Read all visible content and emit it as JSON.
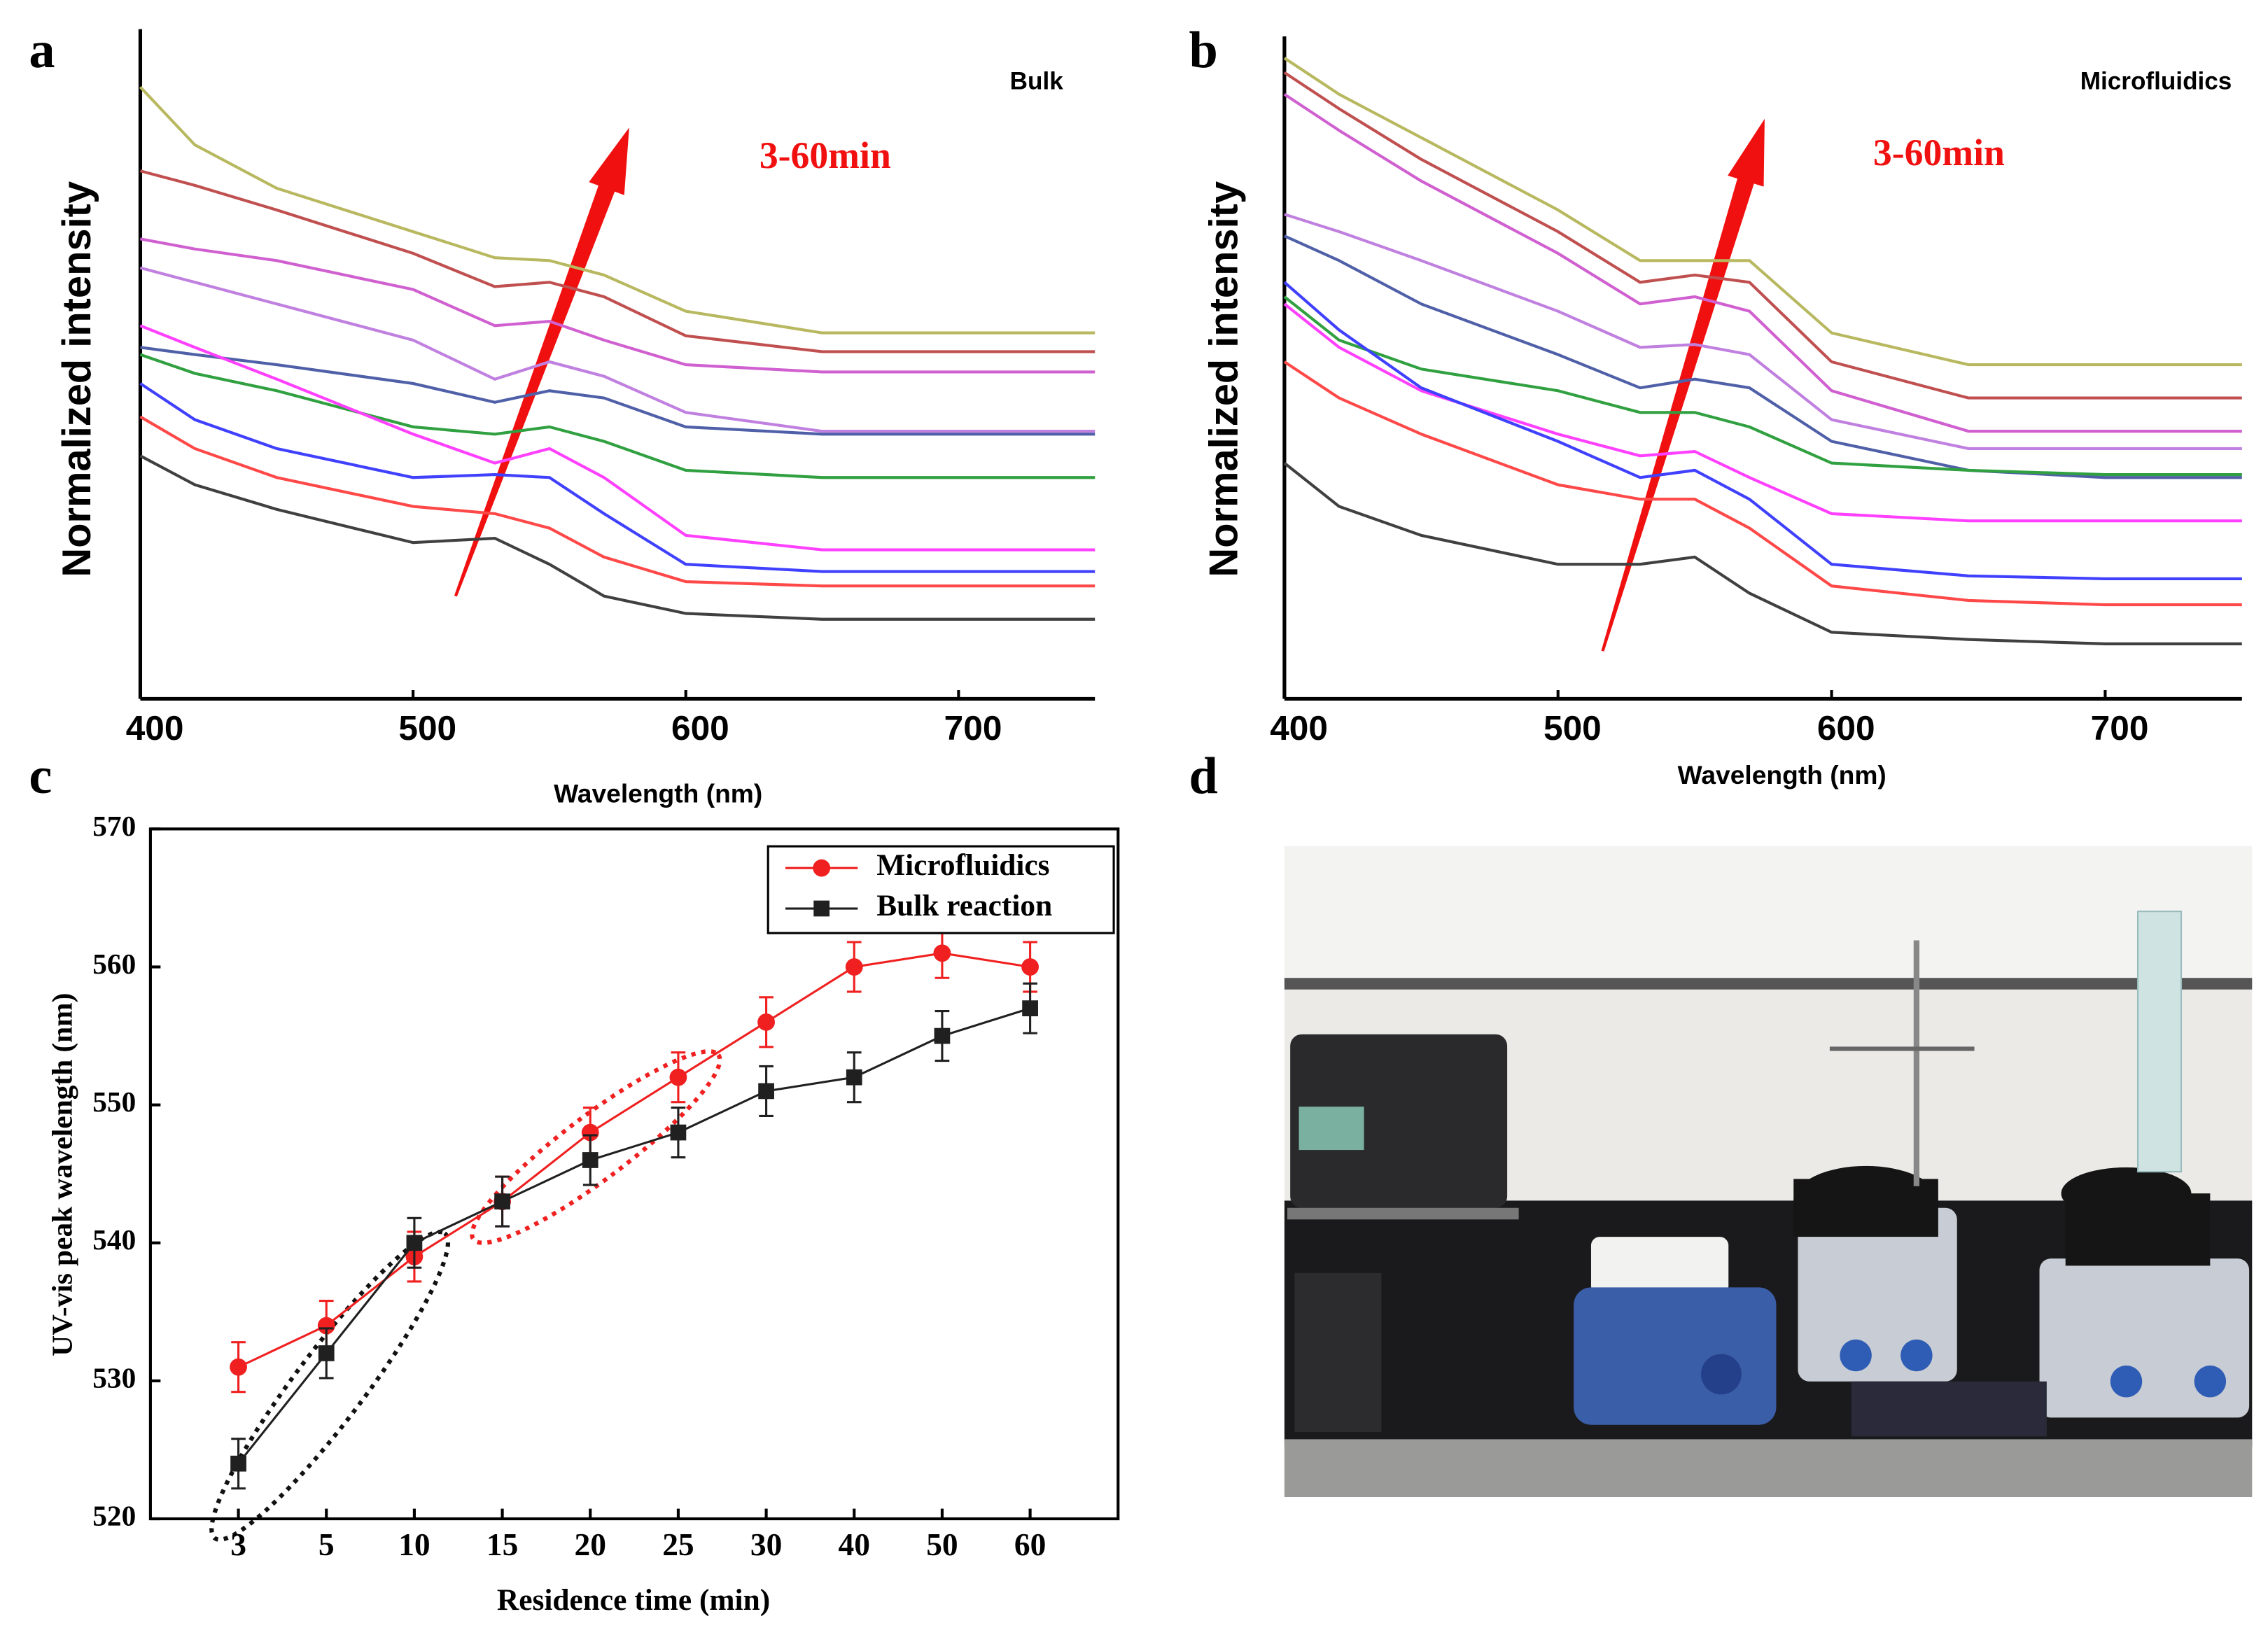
{
  "chart_data": [
    {
      "type": "line",
      "label": "a",
      "annotation": "Bulk",
      "arrow_label": "3-60min",
      "x_label": "Wavelength (nm)",
      "y_label": "Normalized intensity",
      "x": [
        400,
        420,
        450,
        500,
        530,
        550,
        570,
        600,
        650,
        700,
        750
      ],
      "xlim": [
        400,
        750
      ],
      "xticks": [
        400,
        500,
        600,
        700
      ],
      "ylim": [
        0,
        463
      ],
      "series": [
        {
          "color": "#b8b860",
          "values": [
            423,
            383,
            353,
            323,
            305,
            303,
            293,
            268,
            253,
            253,
            253
          ]
        },
        {
          "color": "#c05050",
          "values": [
            365,
            355,
            338,
            308,
            285,
            288,
            278,
            251,
            240,
            240,
            240
          ]
        },
        {
          "color": "#d060d0",
          "values": [
            318,
            311,
            303,
            283,
            258,
            261,
            248,
            231,
            226,
            226,
            226
          ]
        },
        {
          "color": "#c080e0",
          "values": [
            298,
            288,
            273,
            248,
            221,
            233,
            223,
            198,
            185,
            185,
            185
          ]
        },
        {
          "color": "#5060a8",
          "values": [
            243,
            238,
            231,
            218,
            205,
            213,
            208,
            188,
            183,
            183,
            183
          ]
        },
        {
          "color": "#30a040",
          "values": [
            238,
            225,
            213,
            188,
            183,
            188,
            178,
            158,
            153,
            153,
            153
          ]
        },
        {
          "color": "#ff40ff",
          "values": [
            258,
            243,
            221,
            183,
            163,
            173,
            153,
            113,
            103,
            103,
            103
          ]
        },
        {
          "color": "#4040ff",
          "values": [
            218,
            193,
            173,
            153,
            155,
            153,
            128,
            93,
            88,
            88,
            88
          ]
        },
        {
          "color": "#ff4848",
          "values": [
            195,
            173,
            153,
            133,
            128,
            118,
            98,
            81,
            78,
            78,
            78
          ]
        },
        {
          "color": "#404040",
          "values": [
            168,
            148,
            131,
            108,
            111,
            93,
            71,
            59,
            55,
            55,
            55
          ]
        }
      ]
    },
    {
      "type": "line",
      "label": "b",
      "annotation": "Microfluidics",
      "arrow_label": "3-60min",
      "x_label": "Wavelength (nm)",
      "y_label": "Normalized intensity",
      "x": [
        400,
        420,
        450,
        500,
        530,
        550,
        570,
        600,
        650,
        700,
        750
      ],
      "xlim": [
        400,
        750
      ],
      "xticks": [
        400,
        500,
        600,
        700
      ],
      "ylim": [
        0,
        458
      ],
      "series": [
        {
          "color": "#b8b860",
          "values": [
            443,
            418,
            388,
            338,
            303,
            303,
            303,
            253,
            231,
            231,
            231
          ]
        },
        {
          "color": "#c05050",
          "values": [
            433,
            408,
            373,
            323,
            288,
            293,
            288,
            233,
            208,
            208,
            208
          ]
        },
        {
          "color": "#d060d0",
          "values": [
            418,
            393,
            358,
            308,
            273,
            278,
            268,
            213,
            185,
            185,
            185
          ]
        },
        {
          "color": "#c080e0",
          "values": [
            335,
            323,
            303,
            268,
            243,
            245,
            238,
            193,
            173,
            173,
            173
          ]
        },
        {
          "color": "#5060a8",
          "values": [
            320,
            303,
            273,
            238,
            215,
            221,
            215,
            178,
            158,
            153,
            153
          ]
        },
        {
          "color": "#30a040",
          "values": [
            278,
            248,
            228,
            213,
            198,
            198,
            188,
            163,
            158,
            155,
            155
          ]
        },
        {
          "color": "#ff40ff",
          "values": [
            273,
            243,
            213,
            183,
            168,
            171,
            153,
            128,
            123,
            123,
            123
          ]
        },
        {
          "color": "#4040ff",
          "values": [
            288,
            255,
            215,
            178,
            153,
            158,
            138,
            93,
            85,
            83,
            83
          ]
        },
        {
          "color": "#ff4848",
          "values": [
            233,
            208,
            183,
            148,
            138,
            138,
            118,
            78,
            68,
            65,
            65
          ]
        },
        {
          "color": "#404040",
          "values": [
            163,
            133,
            113,
            93,
            93,
            98,
            73,
            46,
            41,
            38,
            38
          ]
        }
      ]
    },
    {
      "type": "line",
      "label": "c",
      "x_label": "Residence time (min)",
      "y_label": "UV-vis peak wavelength (nm)",
      "categories": [
        "3",
        "5",
        "10",
        "15",
        "20",
        "25",
        "30",
        "40",
        "50",
        "60"
      ],
      "ylim": [
        520,
        570
      ],
      "yticks": [
        520,
        530,
        540,
        550,
        560,
        570
      ],
      "legend": "upper right",
      "series": [
        {
          "name": "Microfluidics",
          "color": "#f02020",
          "marker": "circle",
          "values": [
            531,
            534,
            539,
            543,
            548,
            552,
            556,
            560,
            561,
            560
          ],
          "errors": [
            1.8,
            1.8,
            1.8,
            1.8,
            1.8,
            1.8,
            1.8,
            1.8,
            1.8,
            1.8
          ]
        },
        {
          "name": "Bulk reaction",
          "color": "#202020",
          "marker": "square",
          "values": [
            524,
            532,
            540,
            543,
            546,
            548,
            551,
            552,
            555,
            557
          ],
          "errors": [
            1.8,
            1.8,
            1.8,
            1.8,
            1.8,
            1.8,
            1.8,
            1.8,
            1.8,
            1.8
          ]
        }
      ]
    }
  ],
  "photo": {
    "label": "d"
  }
}
